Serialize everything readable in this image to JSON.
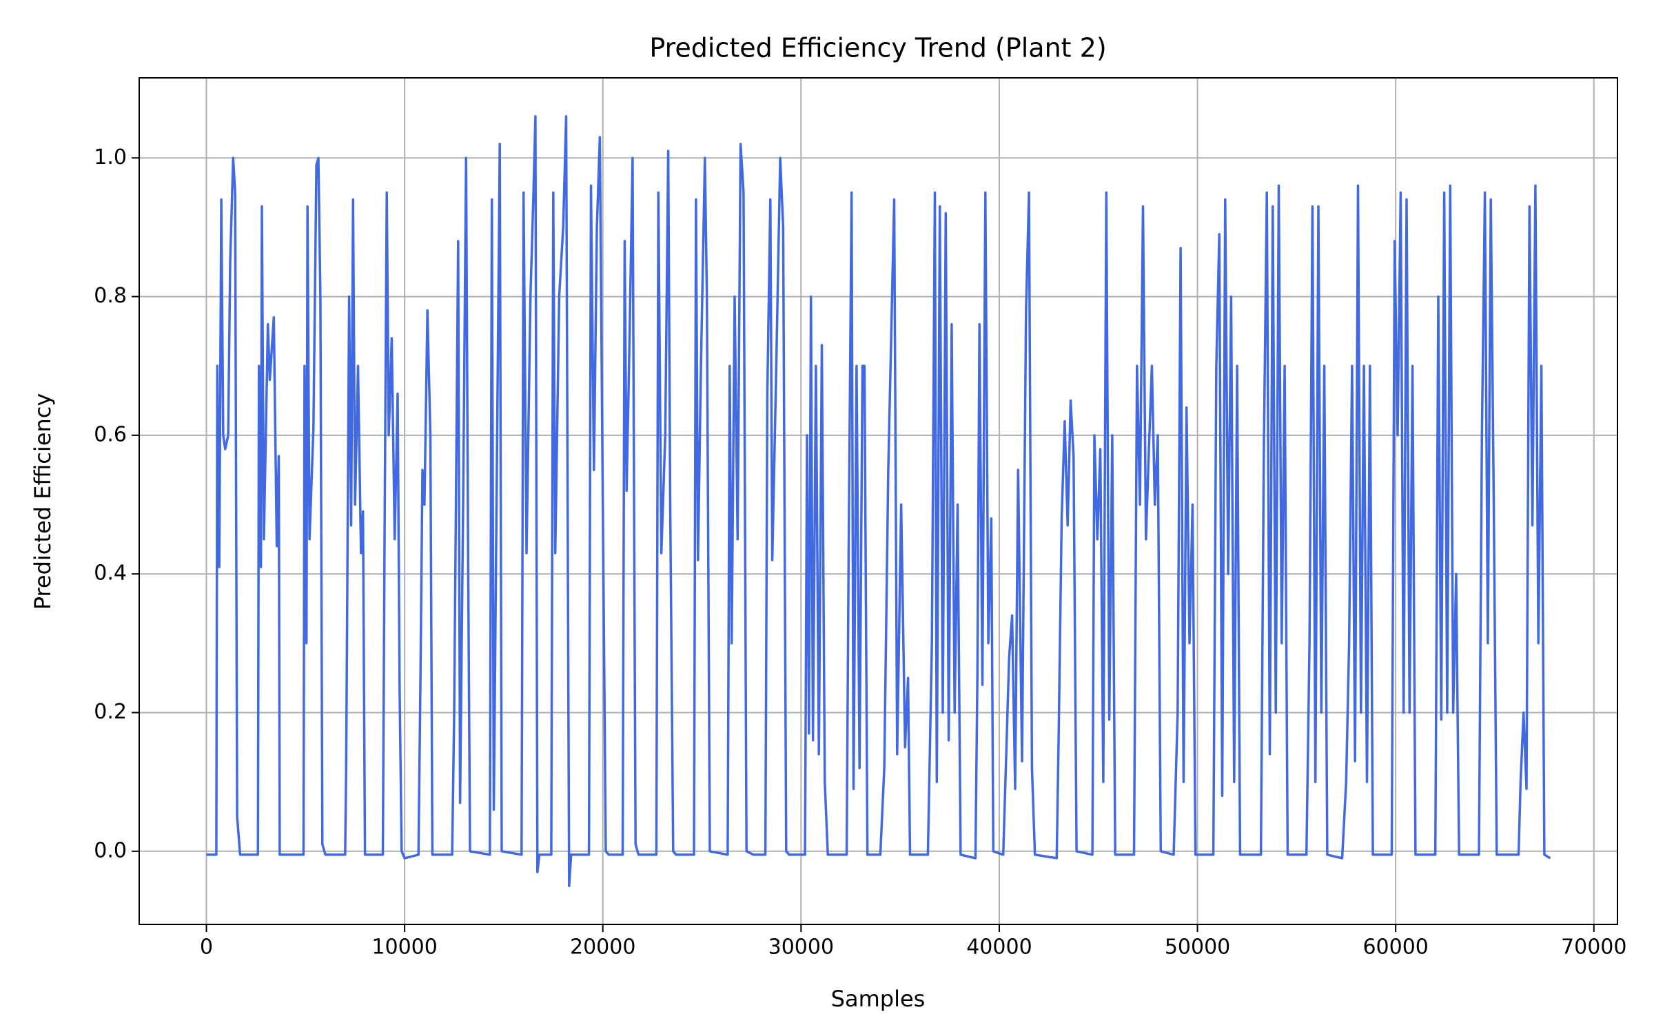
{
  "chart_data": {
    "type": "line",
    "title": "Predicted Efficiency Trend (Plant 2)",
    "x_label": "Samples",
    "y_label": "Predicted Efficiency",
    "x": [
      0,
      500,
      550,
      650,
      750,
      850,
      950,
      1100,
      1200,
      1350,
      1450,
      1550,
      1700,
      2600,
      2650,
      2750,
      2800,
      2900,
      3100,
      3200,
      3400,
      3550,
      3650,
      3700,
      4900,
      4950,
      5050,
      5100,
      5200,
      5400,
      5550,
      5650,
      5750,
      5850,
      6000,
      7000,
      7050,
      7200,
      7300,
      7400,
      7500,
      7650,
      7800,
      7900,
      8000,
      8900,
      9000,
      9100,
      9200,
      9350,
      9500,
      9650,
      9750,
      9850,
      10000,
      10700,
      10800,
      10900,
      11000,
      11150,
      11300,
      11400,
      12400,
      12500,
      12700,
      12800,
      12950,
      13100,
      13200,
      13300,
      14300,
      14400,
      14500,
      14700,
      14800,
      14900,
      15900,
      16000,
      16150,
      16350,
      16500,
      16600,
      16700,
      16800,
      17400,
      17500,
      17600,
      17800,
      18000,
      18150,
      18300,
      18400,
      19300,
      19400,
      19550,
      19700,
      19850,
      20000,
      20150,
      20300,
      21000,
      21100,
      21200,
      21350,
      21500,
      21650,
      21800,
      22700,
      22800,
      22950,
      23150,
      23300,
      23400,
      23550,
      23700,
      24600,
      24700,
      24800,
      24950,
      25150,
      25250,
      25400,
      26300,
      26400,
      26500,
      26650,
      26800,
      26950,
      27100,
      27250,
      27600,
      28200,
      28300,
      28450,
      28550,
      28750,
      28950,
      29100,
      29250,
      29400,
      30200,
      30300,
      30400,
      30500,
      30600,
      30750,
      30900,
      31050,
      31200,
      31350,
      32300,
      32400,
      32550,
      32650,
      32800,
      32950,
      33100,
      33200,
      33350,
      34000,
      34200,
      34400,
      34700,
      34850,
      35050,
      35250,
      35400,
      35500,
      36400,
      36600,
      36750,
      36850,
      37000,
      37150,
      37300,
      37450,
      37600,
      37750,
      37900,
      38050,
      38800,
      38900,
      39000,
      39150,
      39300,
      39450,
      39600,
      39700,
      40200,
      40500,
      40650,
      40800,
      40950,
      41150,
      41350,
      41500,
      41650,
      41800,
      42900,
      43000,
      43150,
      43300,
      43450,
      43600,
      43750,
      43900,
      44700,
      44800,
      44950,
      45100,
      45250,
      45400,
      45550,
      45700,
      45850,
      46800,
      46950,
      47100,
      47250,
      47400,
      47550,
      47700,
      47850,
      48000,
      48150,
      48800,
      49000,
      49150,
      49300,
      49450,
      49600,
      49750,
      49900,
      50800,
      50950,
      51100,
      51250,
      51400,
      51550,
      51700,
      51850,
      52000,
      52150,
      53200,
      53350,
      53500,
      53650,
      53800,
      53950,
      54100,
      54250,
      54400,
      54550,
      55500,
      55650,
      55800,
      55950,
      56100,
      56250,
      56400,
      56550,
      57300,
      57500,
      57650,
      57800,
      57950,
      58100,
      58250,
      58400,
      58550,
      58700,
      58850,
      59800,
      59950,
      60100,
      60250,
      60400,
      60550,
      60700,
      60850,
      61000,
      62000,
      62150,
      62300,
      62450,
      62600,
      62750,
      62900,
      63050,
      63200,
      64200,
      64350,
      64500,
      64650,
      64800,
      64950,
      65100,
      66200,
      66300,
      66450,
      66600,
      66750,
      66900,
      67050,
      67200,
      67350,
      67500,
      67800
    ],
    "series": [
      {
        "name": "Predicted Efficiency",
        "color": "#4169e1",
        "values": [
          -0.005,
          -0.005,
          0.7,
          0.41,
          0.94,
          0.6,
          0.58,
          0.6,
          0.85,
          1.0,
          0.95,
          0.05,
          -0.005,
          -0.005,
          0.7,
          0.41,
          0.93,
          0.45,
          0.76,
          0.68,
          0.77,
          0.44,
          0.57,
          -0.005,
          -0.005,
          0.7,
          0.3,
          0.93,
          0.45,
          0.61,
          0.99,
          1.0,
          0.8,
          0.01,
          -0.005,
          -0.005,
          0.12,
          0.8,
          0.47,
          0.94,
          0.5,
          0.7,
          0.43,
          0.49,
          -0.005,
          -0.005,
          0.5,
          0.95,
          0.6,
          0.74,
          0.45,
          0.66,
          0.23,
          0.0,
          -0.01,
          -0.005,
          0.25,
          0.55,
          0.5,
          0.78,
          0.6,
          -0.005,
          -0.005,
          0.2,
          0.88,
          0.07,
          0.5,
          1.0,
          0.45,
          0.0,
          -0.005,
          0.94,
          0.06,
          0.7,
          1.02,
          0.0,
          -0.005,
          0.95,
          0.43,
          0.8,
          0.95,
          1.06,
          -0.03,
          -0.005,
          -0.005,
          0.95,
          0.43,
          0.8,
          0.9,
          1.06,
          -0.05,
          -0.005,
          -0.005,
          0.96,
          0.55,
          0.9,
          1.03,
          0.5,
          0.0,
          -0.005,
          -0.005,
          0.88,
          0.52,
          0.74,
          1.0,
          0.01,
          -0.005,
          -0.005,
          0.95,
          0.43,
          0.6,
          1.01,
          0.5,
          0.0,
          -0.005,
          -0.005,
          0.94,
          0.42,
          0.7,
          1.0,
          0.8,
          0.0,
          -0.005,
          0.7,
          0.3,
          0.8,
          0.45,
          1.02,
          0.95,
          0.0,
          -0.005,
          -0.005,
          0.66,
          0.94,
          0.42,
          0.7,
          1.0,
          0.9,
          0.0,
          -0.005,
          -0.005,
          0.6,
          0.17,
          0.8,
          0.16,
          0.7,
          0.14,
          0.73,
          0.1,
          -0.005,
          -0.005,
          0.43,
          0.95,
          0.09,
          0.7,
          0.12,
          0.7,
          0.7,
          -0.005,
          -0.005,
          0.12,
          0.55,
          0.94,
          0.14,
          0.5,
          0.15,
          0.25,
          -0.005,
          -0.005,
          0.3,
          0.95,
          0.1,
          0.93,
          0.2,
          0.92,
          0.16,
          0.76,
          0.2,
          0.5,
          -0.005,
          -0.01,
          0.26,
          0.76,
          0.24,
          0.95,
          0.3,
          0.48,
          0.0,
          -0.005,
          0.28,
          0.34,
          0.09,
          0.55,
          0.13,
          0.78,
          0.95,
          0.12,
          -0.005,
          -0.01,
          0.17,
          0.48,
          0.62,
          0.47,
          0.65,
          0.57,
          0.0,
          -0.005,
          0.6,
          0.45,
          0.58,
          0.1,
          0.95,
          0.19,
          0.6,
          -0.005,
          -0.005,
          0.7,
          0.5,
          0.93,
          0.45,
          0.58,
          0.7,
          0.5,
          0.6,
          0.0,
          -0.005,
          0.2,
          0.87,
          0.1,
          0.64,
          0.3,
          0.5,
          -0.005,
          -0.005,
          0.7,
          0.89,
          0.08,
          0.94,
          0.4,
          0.8,
          0.1,
          0.7,
          -0.005,
          -0.005,
          0.58,
          0.95,
          0.14,
          0.93,
          0.2,
          0.96,
          0.3,
          0.7,
          -0.005,
          -0.005,
          0.3,
          0.93,
          0.1,
          0.93,
          0.2,
          0.7,
          -0.005,
          -0.01,
          0.1,
          0.3,
          0.7,
          0.13,
          0.96,
          0.2,
          0.7,
          0.1,
          0.7,
          -0.005,
          -0.005,
          0.88,
          0.6,
          0.95,
          0.2,
          0.94,
          0.2,
          0.7,
          -0.005,
          -0.005,
          0.8,
          0.19,
          0.95,
          0.2,
          0.96,
          0.2,
          0.4,
          -0.005,
          -0.005,
          0.6,
          0.95,
          0.3,
          0.94,
          0.5,
          -0.005,
          -0.005,
          0.1,
          0.2,
          0.09,
          0.93,
          0.47,
          0.96,
          0.3,
          0.7,
          -0.005,
          -0.01
        ]
      }
    ],
    "xlim": [
      -3390,
      71190
    ],
    "ylim": [
      -0.1055,
      1.1155
    ],
    "xticks": [
      0,
      10000,
      20000,
      30000,
      40000,
      50000,
      60000,
      70000
    ],
    "yticks": [
      {
        "value": 0,
        "label": "0.0"
      },
      0.2,
      0.4,
      0.6,
      0.8,
      {
        "value": 1,
        "label": "1.0"
      }
    ],
    "grid": true
  }
}
